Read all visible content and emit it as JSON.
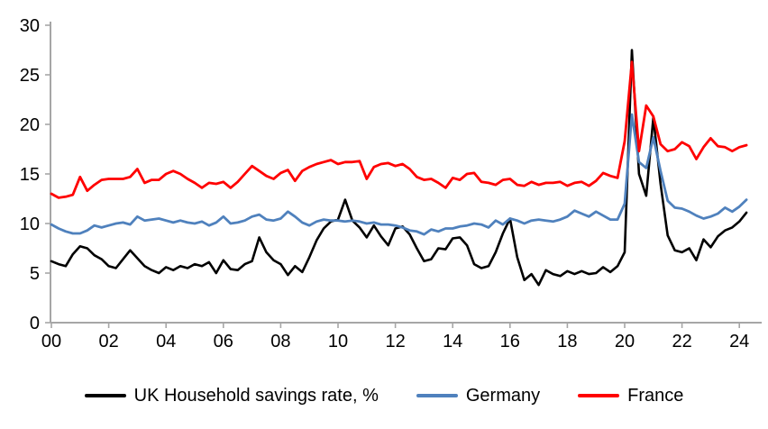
{
  "chart_data": {
    "type": "line",
    "title": "",
    "frequency": "quarterly",
    "x_start": 2000.0,
    "x_step": 0.25,
    "x_range_shown": "2000 Q1 to 2024 Q2",
    "xlim": [
      2000,
      2024.75
    ],
    "ylim": [
      0,
      30
    ],
    "grid": false,
    "legend_position": "bottom",
    "background": "#FFFFFF",
    "axis_color": "#A6A6A6",
    "tick_label_color": "#000000",
    "yticks": [
      0,
      5,
      10,
      15,
      20,
      25,
      30
    ],
    "xticks": {
      "positions": [
        2000,
        2002,
        2004,
        2006,
        2008,
        2010,
        2012,
        2014,
        2016,
        2018,
        2020,
        2022,
        2024
      ],
      "labels": [
        "00",
        "02",
        "04",
        "06",
        "08",
        "10",
        "12",
        "14",
        "16",
        "18",
        "20",
        "22",
        "24"
      ]
    },
    "series": [
      {
        "name": "UK Household savings rate, %",
        "color": "#000000",
        "values": [
          6.2,
          5.9,
          5.7,
          6.9,
          7.7,
          7.5,
          6.8,
          6.4,
          5.7,
          5.5,
          6.4,
          7.3,
          6.5,
          5.7,
          5.3,
          5.0,
          5.6,
          5.3,
          5.7,
          5.5,
          5.9,
          5.7,
          6.1,
          5.0,
          6.3,
          5.4,
          5.3,
          5.9,
          6.2,
          8.6,
          7.1,
          6.3,
          5.9,
          4.8,
          5.7,
          5.1,
          6.6,
          8.3,
          9.5,
          10.2,
          10.4,
          12.4,
          10.3,
          9.6,
          8.6,
          9.8,
          8.7,
          7.8,
          9.5,
          9.7,
          8.9,
          7.5,
          6.2,
          6.4,
          7.5,
          7.4,
          8.5,
          8.6,
          7.8,
          5.9,
          5.5,
          5.7,
          7.1,
          9.0,
          10.5,
          6.6,
          4.3,
          4.9,
          3.8,
          5.3,
          4.9,
          4.7,
          5.2,
          4.9,
          5.2,
          4.9,
          5.0,
          5.6,
          5.1,
          5.7,
          7.1,
          27.5,
          15.0,
          12.8,
          20.7,
          14.0,
          8.8,
          7.3,
          7.1,
          7.5,
          6.3,
          8.4,
          7.6,
          8.7,
          9.3,
          9.6,
          10.2,
          11.1
        ]
      },
      {
        "name": "Germany",
        "color": "#4F81BD",
        "values": [
          9.9,
          9.5,
          9.2,
          9.0,
          9.0,
          9.3,
          9.8,
          9.6,
          9.8,
          10.0,
          10.1,
          9.9,
          10.7,
          10.3,
          10.4,
          10.5,
          10.3,
          10.1,
          10.3,
          10.1,
          10.0,
          10.2,
          9.8,
          10.1,
          10.7,
          10.0,
          10.1,
          10.3,
          10.7,
          10.9,
          10.4,
          10.3,
          10.5,
          11.2,
          10.7,
          10.1,
          9.8,
          10.2,
          10.4,
          10.3,
          10.3,
          10.2,
          10.3,
          10.2,
          10.0,
          10.1,
          9.9,
          9.9,
          9.8,
          9.6,
          9.3,
          9.2,
          8.9,
          9.4,
          9.2,
          9.5,
          9.5,
          9.7,
          9.8,
          10.0,
          9.9,
          9.6,
          10.3,
          9.9,
          10.5,
          10.3,
          10.0,
          10.3,
          10.4,
          10.3,
          10.2,
          10.4,
          10.7,
          11.3,
          11.0,
          10.7,
          11.2,
          10.8,
          10.4,
          10.4,
          12.0,
          21.0,
          16.2,
          15.6,
          18.7,
          15.3,
          12.3,
          11.6,
          11.5,
          11.2,
          10.8,
          10.5,
          10.7,
          11.0,
          11.6,
          11.2,
          11.7,
          12.4
        ]
      },
      {
        "name": "France",
        "color": "#FF0000",
        "values": [
          13.0,
          12.6,
          12.7,
          12.9,
          14.7,
          13.3,
          13.9,
          14.4,
          14.5,
          14.5,
          14.5,
          14.7,
          15.5,
          14.1,
          14.4,
          14.4,
          15.0,
          15.3,
          15.0,
          14.5,
          14.1,
          13.6,
          14.1,
          14.0,
          14.2,
          13.6,
          14.2,
          15.0,
          15.8,
          15.3,
          14.8,
          14.5,
          15.1,
          15.4,
          14.3,
          15.3,
          15.7,
          16.0,
          16.2,
          16.4,
          16.0,
          16.2,
          16.2,
          16.3,
          14.5,
          15.7,
          16.0,
          16.1,
          15.8,
          16.0,
          15.5,
          14.7,
          14.4,
          14.5,
          14.1,
          13.6,
          14.6,
          14.4,
          15.0,
          15.1,
          14.2,
          14.1,
          13.9,
          14.4,
          14.5,
          13.9,
          13.8,
          14.2,
          13.9,
          14.1,
          14.1,
          14.2,
          13.8,
          14.1,
          14.2,
          13.8,
          14.3,
          15.1,
          14.8,
          14.6,
          18.3,
          26.3,
          17.3,
          21.9,
          20.8,
          18.0,
          17.3,
          17.5,
          18.2,
          17.8,
          16.5,
          17.7,
          18.6,
          17.8,
          17.7,
          17.3,
          17.7,
          17.9
        ]
      }
    ]
  },
  "legend": {
    "items": [
      {
        "label": "UK Household savings rate, %"
      },
      {
        "label": "Germany"
      },
      {
        "label": "France"
      }
    ]
  }
}
